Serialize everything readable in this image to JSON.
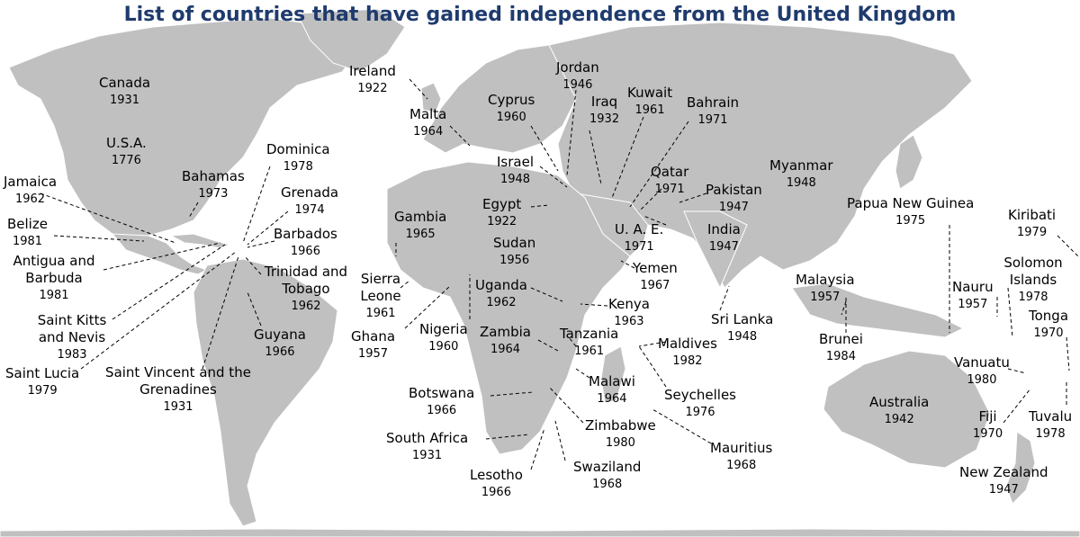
{
  "title": "List of countries that have gained independence from the United Kingdom",
  "colors": {
    "land": "#c0c0c0",
    "borders": "#ffffff",
    "title": "#1f3b6e",
    "arrows": "#000000"
  },
  "countries": [
    {
      "name": "Canada",
      "year": "1931"
    },
    {
      "name": "U.S.A.",
      "year": "1776"
    },
    {
      "name": "Jamaica",
      "year": "1962"
    },
    {
      "name": "Belize",
      "year": "1981"
    },
    {
      "name": "Antigua and Barbuda",
      "year": "1981"
    },
    {
      "name": "Saint Kitts and Nevis",
      "year": "1983"
    },
    {
      "name": "Saint Lucia",
      "year": "1979"
    },
    {
      "name": "Bahamas",
      "year": "1973"
    },
    {
      "name": "Dominica",
      "year": "1978"
    },
    {
      "name": "Grenada",
      "year": "1974"
    },
    {
      "name": "Barbados",
      "year": "1966"
    },
    {
      "name": "Trinidad and Tobago",
      "year": "1962"
    },
    {
      "name": "Saint Vincent and the Grenadines",
      "year": "1931"
    },
    {
      "name": "Guyana",
      "year": "1966"
    },
    {
      "name": "Ireland",
      "year": "1922"
    },
    {
      "name": "Malta",
      "year": "1964"
    },
    {
      "name": "Jordan",
      "year": "1946"
    },
    {
      "name": "Cyprus",
      "year": "1960"
    },
    {
      "name": "Iraq",
      "year": "1932"
    },
    {
      "name": "Kuwait",
      "year": "1961"
    },
    {
      "name": "Bahrain",
      "year": "1971"
    },
    {
      "name": "Israel",
      "year": "1948"
    },
    {
      "name": "Egypt",
      "year": "1922"
    },
    {
      "name": "Qatar",
      "year": "1971"
    },
    {
      "name": "Pakistan",
      "year": "1947"
    },
    {
      "name": "Myanmar",
      "year": "1948"
    },
    {
      "name": "Gambia",
      "year": "1965"
    },
    {
      "name": "Sudan",
      "year": "1956"
    },
    {
      "name": "U. A. E.",
      "year": "1971"
    },
    {
      "name": "India",
      "year": "1947"
    },
    {
      "name": "Sierra Leone",
      "year": "1961"
    },
    {
      "name": "Yemen",
      "year": "1967"
    },
    {
      "name": "Uganda",
      "year": "1962"
    },
    {
      "name": "Kenya",
      "year": "1963"
    },
    {
      "name": "Ghana",
      "year": "1957"
    },
    {
      "name": "Nigeria",
      "year": "1960"
    },
    {
      "name": "Zambia",
      "year": "1964"
    },
    {
      "name": "Tanzania",
      "year": "1961"
    },
    {
      "name": "Maldives",
      "year": "1982"
    },
    {
      "name": "Sri Lanka",
      "year": "1948"
    },
    {
      "name": "Malaysia",
      "year": "1957"
    },
    {
      "name": "Brunei",
      "year": "1984"
    },
    {
      "name": "Papua New Guinea",
      "year": "1975"
    },
    {
      "name": "Kiribati",
      "year": "1979"
    },
    {
      "name": "Nauru",
      "year": "1957"
    },
    {
      "name": "Solomon Islands",
      "year": "1978"
    },
    {
      "name": "Tonga",
      "year": "1970"
    },
    {
      "name": "Vanuatu",
      "year": "1980"
    },
    {
      "name": "Fiji",
      "year": "1970"
    },
    {
      "name": "Tuvalu",
      "year": "1978"
    },
    {
      "name": "Botswana",
      "year": "1966"
    },
    {
      "name": "Malawi",
      "year": "1964"
    },
    {
      "name": "Seychelles",
      "year": "1976"
    },
    {
      "name": "Zimbabwe",
      "year": "1980"
    },
    {
      "name": "South Africa",
      "year": "1931"
    },
    {
      "name": "Mauritius",
      "year": "1968"
    },
    {
      "name": "Australia",
      "year": "1942"
    },
    {
      "name": "Lesotho",
      "year": "1966"
    },
    {
      "name": "Swaziland",
      "year": "1968"
    },
    {
      "name": "New Zealand",
      "year": "1947"
    }
  ]
}
